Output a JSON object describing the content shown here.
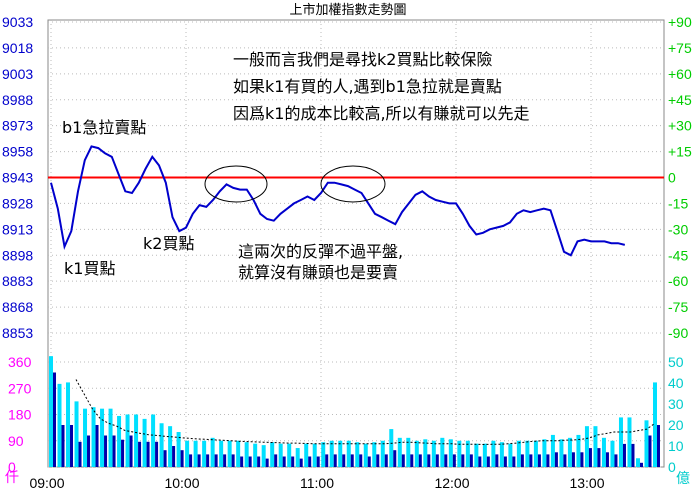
{
  "chart_data": {
    "type": "line",
    "title": "上市加權指數走勢圖",
    "x_ticks": [
      "09:00",
      "10:00",
      "11:00",
      "12:00",
      "13:00"
    ],
    "y_left_ticks": [
      9033,
      9018,
      9003,
      8988,
      8973,
      8958,
      8943,
      8928,
      8913,
      8898,
      8883,
      8868,
      8853
    ],
    "y_right_ticks": [
      "+90",
      "+75",
      "+60",
      "+45",
      "+30",
      "+15",
      "0",
      "-15",
      "-30",
      "-45",
      "-60",
      "-75",
      "-90"
    ],
    "reference_value": 8943,
    "ylim": [
      8853,
      9033
    ],
    "volume_left_ticks": [
      0,
      90,
      180,
      270,
      360
    ],
    "volume_left_unit": "仟",
    "volume_right_ticks": [
      0,
      10,
      20,
      30,
      40,
      50
    ],
    "volume_right_unit": "億",
    "series": [
      {
        "values": [
          [
            "09:00",
            8940
          ],
          [
            "09:03",
            8925
          ],
          [
            "09:06",
            8903
          ],
          [
            "09:09",
            8912
          ],
          [
            "09:12",
            8935
          ],
          [
            "09:15",
            8953
          ],
          [
            "09:18",
            8961
          ],
          [
            "09:21",
            8960
          ],
          [
            "09:24",
            8957
          ],
          [
            "09:27",
            8955
          ],
          [
            "09:30",
            8945
          ],
          [
            "09:33",
            8935
          ],
          [
            "09:36",
            8934
          ],
          [
            "09:39",
            8940
          ],
          [
            "09:42",
            8948
          ],
          [
            "09:45",
            8955
          ],
          [
            "09:48",
            8950
          ],
          [
            "09:51",
            8940
          ],
          [
            "09:54",
            8920
          ],
          [
            "09:57",
            8912
          ],
          [
            "10:00",
            8914
          ],
          [
            "10:03",
            8922
          ],
          [
            "10:06",
            8927
          ],
          [
            "10:09",
            8926
          ],
          [
            "10:12",
            8930
          ],
          [
            "10:15",
            8935
          ],
          [
            "10:18",
            8939
          ],
          [
            "10:21",
            8937
          ],
          [
            "10:24",
            8936
          ],
          [
            "10:27",
            8936
          ],
          [
            "10:30",
            8930
          ],
          [
            "10:33",
            8922
          ],
          [
            "10:36",
            8919
          ],
          [
            "10:39",
            8918
          ],
          [
            "10:42",
            8922
          ],
          [
            "10:45",
            8925
          ],
          [
            "10:48",
            8928
          ],
          [
            "10:51",
            8930
          ],
          [
            "10:54",
            8932
          ],
          [
            "10:57",
            8930
          ],
          [
            "11:00",
            8934
          ],
          [
            "11:03",
            8940
          ],
          [
            "11:06",
            8940
          ],
          [
            "11:09",
            8939
          ],
          [
            "11:12",
            8938
          ],
          [
            "11:15",
            8936
          ],
          [
            "11:18",
            8934
          ],
          [
            "11:21",
            8928
          ],
          [
            "11:24",
            8922
          ],
          [
            "11:27",
            8920
          ],
          [
            "11:30",
            8918
          ],
          [
            "11:33",
            8916
          ],
          [
            "11:36",
            8923
          ],
          [
            "11:39",
            8928
          ],
          [
            "11:42",
            8933
          ],
          [
            "11:45",
            8935
          ],
          [
            "11:48",
            8932
          ],
          [
            "11:51",
            8930
          ],
          [
            "11:54",
            8929
          ],
          [
            "11:57",
            8928
          ],
          [
            "12:00",
            8928
          ],
          [
            "12:03",
            8922
          ],
          [
            "12:06",
            8915
          ],
          [
            "12:09",
            8910
          ],
          [
            "12:12",
            8911
          ],
          [
            "12:15",
            8913
          ],
          [
            "12:18",
            8914
          ],
          [
            "12:21",
            8915
          ],
          [
            "12:24",
            8917
          ],
          [
            "12:27",
            8922
          ],
          [
            "12:30",
            8924
          ],
          [
            "12:33",
            8923
          ],
          [
            "12:36",
            8924
          ],
          [
            "12:39",
            8925
          ],
          [
            "12:42",
            8924
          ],
          [
            "12:45",
            8912
          ],
          [
            "12:48",
            8900
          ],
          [
            "12:51",
            8898
          ],
          [
            "12:54",
            8906
          ],
          [
            "12:57",
            8907
          ],
          [
            "13:00",
            8906
          ],
          [
            "13:03",
            8906
          ],
          [
            "13:06",
            8906
          ],
          [
            "13:09",
            8905
          ],
          [
            "13:12",
            8905
          ],
          [
            "13:15",
            8904
          ]
        ]
      }
    ],
    "volume_bars_left": [
      380,
      285,
      290,
      225,
      200,
      205,
      200,
      200,
      175,
      180,
      180,
      165,
      180,
      150,
      140,
      120,
      90,
      90,
      90,
      100,
      90,
      90,
      90,
      85,
      80,
      75,
      85,
      80,
      80,
      65,
      80,
      80,
      85,
      90,
      90,
      90,
      85,
      80,
      85,
      90,
      130,
      100,
      100,
      90,
      95,
      90,
      100,
      95,
      90,
      90,
      80,
      80,
      90,
      85,
      80,
      90,
      90,
      90,
      95,
      110,
      95,
      100,
      110,
      140,
      140,
      100,
      90,
      170,
      170,
      30,
      160,
      290
    ],
    "volume_bars_right": [
      45,
      20,
      20,
      12,
      15,
      20,
      15,
      15,
      13,
      15,
      12,
      12,
      12,
      8,
      10,
      8,
      6,
      6,
      6,
      6,
      6,
      6,
      5,
      5,
      5,
      4,
      6,
      5,
      5,
      4,
      5,
      5,
      6,
      6,
      6,
      6,
      6,
      5,
      6,
      6,
      8,
      6,
      6,
      6,
      6,
      6,
      6,
      6,
      6,
      6,
      5,
      5,
      6,
      5,
      5,
      6,
      6,
      6,
      6,
      7,
      6,
      7,
      7,
      9,
      9,
      7,
      6,
      11,
      11,
      2,
      15,
      20
    ],
    "volume_avg_line": [
      300,
      250,
      200,
      165,
      150,
      140,
      125,
      120,
      115,
      110,
      108,
      105,
      103,
      100,
      98,
      96,
      95,
      93,
      92,
      90,
      88,
      87,
      86,
      85,
      84,
      83,
      82,
      82,
      81,
      80,
      80,
      80,
      80,
      80,
      80,
      80,
      80,
      80,
      80,
      82,
      85,
      85,
      83,
      82,
      80,
      80,
      80,
      78,
      78,
      78,
      77,
      78,
      78,
      80,
      82,
      85,
      88,
      90,
      90,
      90,
      92,
      93,
      95,
      100,
      110,
      115,
      120,
      120,
      120,
      125,
      130,
      150
    ]
  },
  "annotations": {
    "top_note": [
      "一般而言我們是尋找k2買點比較保險",
      "如果k1有買的人,遇到b1急拉就是賣點",
      "因爲k1的成本比較高,所以有賺就可以先走"
    ],
    "b1_label": "b1急拉賣點",
    "k1_label": "k1買點",
    "k2_label": "k2買點",
    "rebound_note": [
      "這兩次的反彈不過平盤,",
      "就算沒有賺頭也是要賣"
    ]
  },
  "colors": {
    "line": "#0000cc",
    "reference": "#ff0000",
    "left_axis": "#0000cc",
    "right_axis": "#00cc00",
    "volume_bar_light": "#00e0ff",
    "volume_bar_dark": "#0000aa",
    "volume_left_axis": "#ff00ff",
    "volume_right_axis": "#00cccc"
  }
}
